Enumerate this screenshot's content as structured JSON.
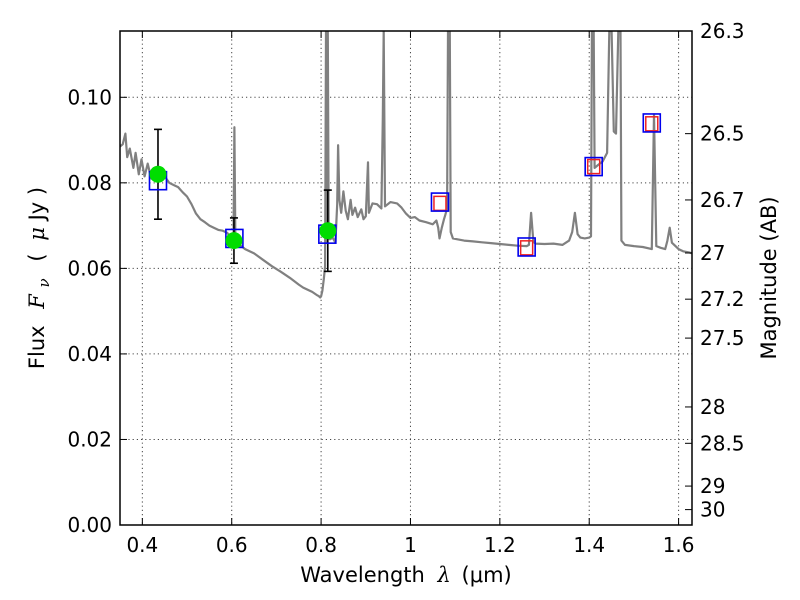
{
  "chart_data": {
    "type": "line",
    "x_axis": {
      "label_prefix": "Wavelength",
      "label_symbol": "λ",
      "label_unit": "(μm)",
      "range": [
        0.35,
        1.63
      ],
      "ticks": [
        0.4,
        0.6,
        0.8,
        1.0,
        1.2,
        1.4,
        1.6
      ],
      "tick_labels": [
        "0.4",
        "0.6",
        "0.8",
        "1",
        "1.2",
        "1.4",
        "1.6"
      ]
    },
    "y_axis": {
      "label_prefix": "Flux",
      "label_symbol": "F",
      "label_subscript": "ν",
      "label_unit_open": "(",
      "label_unit_mu": "μ",
      "label_unit_rest": "Jy )",
      "range": [
        0.0,
        0.1155
      ],
      "ticks": [
        0.0,
        0.02,
        0.04,
        0.06,
        0.08,
        0.1
      ],
      "tick_labels": [
        "0.00",
        "0.02",
        "0.04",
        "0.06",
        "0.08",
        "0.10"
      ]
    },
    "y2_axis": {
      "label": "Magnitude (AB)",
      "tick_flux_values": [
        0.1155,
        0.0915,
        0.076,
        0.0636,
        0.0528,
        0.0437,
        0.0276,
        0.0191,
        0.0091,
        0.0036
      ],
      "tick_labels": [
        "26.3",
        "26.5",
        "26.7",
        "27",
        "27.2",
        "27.5",
        "28",
        "28.5",
        "29",
        "30"
      ]
    },
    "grid": true,
    "model_spectrum": {
      "color": "#808080",
      "points": [
        [
          0.35,
          0.0885
        ],
        [
          0.356,
          0.089
        ],
        [
          0.362,
          0.0915
        ],
        [
          0.366,
          0.086
        ],
        [
          0.372,
          0.088
        ],
        [
          0.38,
          0.0835
        ],
        [
          0.385,
          0.087
        ],
        [
          0.392,
          0.082
        ],
        [
          0.398,
          0.0855
        ],
        [
          0.405,
          0.0815
        ],
        [
          0.412,
          0.0845
        ],
        [
          0.42,
          0.081
        ],
        [
          0.428,
          0.0835
        ],
        [
          0.436,
          0.0815
        ],
        [
          0.443,
          0.0805
        ],
        [
          0.45,
          0.0815
        ],
        [
          0.46,
          0.08
        ],
        [
          0.47,
          0.0795
        ],
        [
          0.48,
          0.079
        ],
        [
          0.49,
          0.0778
        ],
        [
          0.5,
          0.0768
        ],
        [
          0.51,
          0.075
        ],
        [
          0.52,
          0.0728
        ],
        [
          0.53,
          0.0715
        ],
        [
          0.54,
          0.0708
        ],
        [
          0.55,
          0.07
        ],
        [
          0.56,
          0.0695
        ],
        [
          0.57,
          0.069
        ],
        [
          0.58,
          0.0688
        ],
        [
          0.59,
          0.0683
        ],
        [
          0.6,
          0.067
        ],
        [
          0.604,
          0.0665
        ],
        [
          0.606,
          0.093
        ],
        [
          0.608,
          0.068
        ],
        [
          0.615,
          0.0658
        ],
        [
          0.63,
          0.0645
        ],
        [
          0.65,
          0.0635
        ],
        [
          0.67,
          0.062
        ],
        [
          0.69,
          0.0605
        ],
        [
          0.71,
          0.0592
        ],
        [
          0.73,
          0.0578
        ],
        [
          0.75,
          0.0562
        ],
        [
          0.76,
          0.0555
        ],
        [
          0.77,
          0.055
        ],
        [
          0.78,
          0.0545
        ],
        [
          0.79,
          0.0538
        ],
        [
          0.795,
          0.0535
        ],
        [
          0.798,
          0.0532
        ],
        [
          0.8,
          0.0535
        ],
        [
          0.803,
          0.0548
        ],
        [
          0.806,
          0.0575
        ],
        [
          0.809,
          0.0605
        ],
        [
          0.811,
          0.1155
        ],
        [
          0.813,
          0.0662
        ],
        [
          0.815,
          0.1155
        ],
        [
          0.817,
          0.067
        ],
        [
          0.82,
          0.0668
        ],
        [
          0.826,
          0.0672
        ],
        [
          0.832,
          0.066
        ],
        [
          0.836,
          0.075
        ],
        [
          0.838,
          0.0888
        ],
        [
          0.841,
          0.076
        ],
        [
          0.845,
          0.073
        ],
        [
          0.85,
          0.078
        ],
        [
          0.855,
          0.0735
        ],
        [
          0.86,
          0.0715
        ],
        [
          0.866,
          0.076
        ],
        [
          0.87,
          0.0725
        ],
        [
          0.876,
          0.0742
        ],
        [
          0.882,
          0.072
        ],
        [
          0.89,
          0.0738
        ],
        [
          0.895,
          0.0715
        ],
        [
          0.9,
          0.0722
        ],
        [
          0.905,
          0.0848
        ],
        [
          0.907,
          0.073
        ],
        [
          0.915,
          0.0752
        ],
        [
          0.925,
          0.075
        ],
        [
          0.935,
          0.074
        ],
        [
          0.938,
          0.095
        ],
        [
          0.94,
          0.1155
        ],
        [
          0.943,
          0.0745
        ],
        [
          0.955,
          0.0755
        ],
        [
          0.97,
          0.0752
        ],
        [
          0.98,
          0.0742
        ],
        [
          0.99,
          0.0728
        ],
        [
          1.0,
          0.0718
        ],
        [
          1.01,
          0.072
        ],
        [
          1.02,
          0.0712
        ],
        [
          1.035,
          0.0708
        ],
        [
          1.05,
          0.0703
        ],
        [
          1.058,
          0.0712
        ],
        [
          1.062,
          0.0695
        ],
        [
          1.065,
          0.067
        ],
        [
          1.07,
          0.0695
        ],
        [
          1.075,
          0.0715
        ],
        [
          1.078,
          0.0725
        ],
        [
          1.082,
          0.074
        ],
        [
          1.084,
          0.1155
        ],
        [
          1.088,
          0.1155
        ],
        [
          1.09,
          0.0685
        ],
        [
          1.095,
          0.067
        ],
        [
          1.105,
          0.0668
        ],
        [
          1.12,
          0.0665
        ],
        [
          1.14,
          0.0663
        ],
        [
          1.16,
          0.0661
        ],
        [
          1.18,
          0.0659
        ],
        [
          1.2,
          0.0657
        ],
        [
          1.22,
          0.0655
        ],
        [
          1.24,
          0.0653
        ],
        [
          1.26,
          0.0652
        ],
        [
          1.265,
          0.0655
        ],
        [
          1.27,
          0.073
        ],
        [
          1.275,
          0.0662
        ],
        [
          1.28,
          0.0658
        ],
        [
          1.3,
          0.0657
        ],
        [
          1.32,
          0.0658
        ],
        [
          1.34,
          0.0655
        ],
        [
          1.355,
          0.0665
        ],
        [
          1.362,
          0.0685
        ],
        [
          1.368,
          0.073
        ],
        [
          1.374,
          0.068
        ],
        [
          1.38,
          0.0672
        ],
        [
          1.39,
          0.067
        ],
        [
          1.4,
          0.0672
        ],
        [
          1.404,
          0.0675
        ],
        [
          1.406,
          0.1155
        ],
        [
          1.41,
          0.1155
        ],
        [
          1.412,
          0.0835
        ],
        [
          1.42,
          0.0842
        ],
        [
          1.43,
          0.085
        ],
        [
          1.44,
          0.087
        ],
        [
          1.445,
          0.1155
        ],
        [
          1.45,
          0.1155
        ],
        [
          1.455,
          0.092
        ],
        [
          1.46,
          0.0915
        ],
        [
          1.465,
          0.1155
        ],
        [
          1.47,
          0.1155
        ],
        [
          1.472,
          0.0665
        ],
        [
          1.48,
          0.0655
        ],
        [
          1.5,
          0.0652
        ],
        [
          1.52,
          0.065
        ],
        [
          1.54,
          0.0645
        ],
        [
          1.545,
          0.096
        ],
        [
          1.55,
          0.0652
        ],
        [
          1.56,
          0.0648
        ],
        [
          1.57,
          0.0645
        ],
        [
          1.575,
          0.0665
        ],
        [
          1.58,
          0.0695
        ],
        [
          1.585,
          0.066
        ],
        [
          1.6,
          0.0645
        ],
        [
          1.61,
          0.064
        ],
        [
          1.625,
          0.0637
        ],
        [
          1.63,
          0.0635
        ]
      ]
    },
    "observed_photometry": {
      "color": "#00dd00",
      "points": [
        {
          "x": 0.435,
          "y": 0.082,
          "yerr": 0.0105
        },
        {
          "x": 0.605,
          "y": 0.0665,
          "yerr": 0.0053
        },
        {
          "x": 0.815,
          "y": 0.0688,
          "yerr": 0.0095
        }
      ]
    },
    "model_photometry": {
      "color": "#0000ee",
      "points": [
        {
          "x": 0.435,
          "y": 0.0805
        },
        {
          "x": 0.606,
          "y": 0.067
        },
        {
          "x": 0.814,
          "y": 0.068
        },
        {
          "x": 1.066,
          "y": 0.0755
        },
        {
          "x": 1.26,
          "y": 0.065
        },
        {
          "x": 1.41,
          "y": 0.0838
        },
        {
          "x": 1.54,
          "y": 0.094
        }
      ]
    },
    "model_photometry_upper_limits": {
      "color": "#ee2222",
      "points": [
        {
          "x": 1.066,
          "y": 0.0752
        },
        {
          "x": 1.26,
          "y": 0.0648
        },
        {
          "x": 1.41,
          "y": 0.0838
        },
        {
          "x": 1.54,
          "y": 0.0938
        }
      ]
    }
  }
}
